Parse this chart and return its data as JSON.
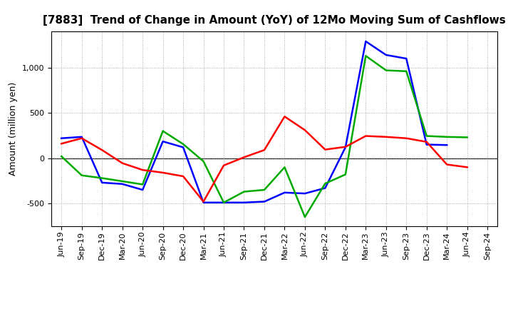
{
  "title": "[7883]  Trend of Change in Amount (YoY) of 12Mo Moving Sum of Cashflows",
  "ylabel": "Amount (million yen)",
  "xlabel": "",
  "labels": [
    "Jun-19",
    "Sep-19",
    "Dec-19",
    "Mar-20",
    "Jun-20",
    "Sep-20",
    "Dec-20",
    "Mar-21",
    "Jun-21",
    "Sep-21",
    "Dec-21",
    "Mar-22",
    "Jun-22",
    "Sep-22",
    "Dec-22",
    "Mar-23",
    "Jun-23",
    "Sep-23",
    "Dec-23",
    "Mar-24",
    "Jun-24",
    "Sep-24"
  ],
  "operating": [
    160,
    220,
    90,
    -55,
    -130,
    -160,
    -200,
    -480,
    -80,
    10,
    90,
    460,
    310,
    95,
    125,
    245,
    235,
    220,
    180,
    -70,
    -100,
    null
  ],
  "investing": [
    20,
    -190,
    -220,
    -255,
    -290,
    300,
    155,
    -35,
    -490,
    -370,
    -350,
    -100,
    -650,
    -280,
    -180,
    1130,
    970,
    960,
    245,
    235,
    230,
    null
  ],
  "free": [
    220,
    235,
    -270,
    -285,
    -350,
    185,
    120,
    -490,
    -490,
    -490,
    -480,
    -380,
    -390,
    -330,
    120,
    1290,
    1140,
    1100,
    150,
    145,
    null,
    null
  ],
  "ylim": [
    -750,
    1400
  ],
  "yticks": [
    -500,
    0,
    500,
    1000
  ],
  "operating_color": "#ff0000",
  "investing_color": "#00aa00",
  "free_color": "#0000ff",
  "bg_color": "#ffffff",
  "grid_color": "#999999",
  "linewidth": 1.8,
  "title_fontsize": 11,
  "ylabel_fontsize": 9,
  "tick_fontsize": 8,
  "legend_fontsize": 9
}
